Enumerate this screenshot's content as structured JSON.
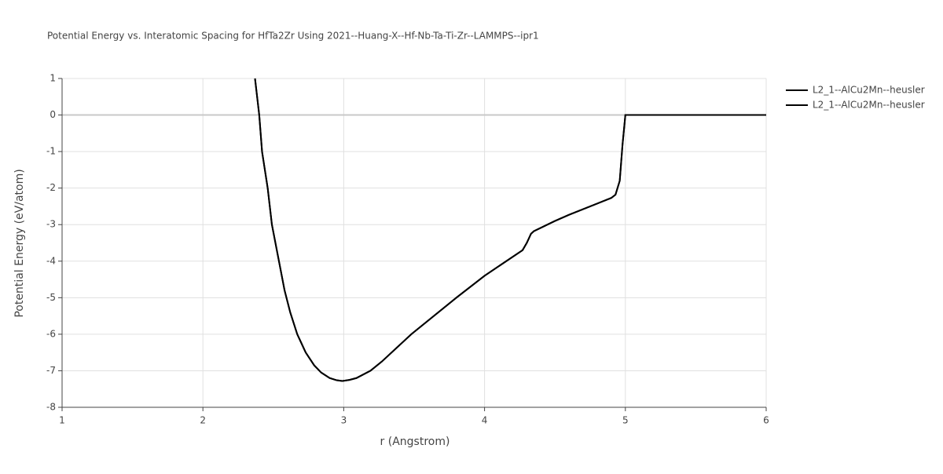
{
  "chart_data": {
    "type": "line",
    "title": "Potential Energy vs. Interatomic Spacing for HfTa2Zr Using 2021--Huang-X--Hf-Nb-Ta-Ti-Zr--LAMMPS--ipr1",
    "x_label": "r (Angstrom)",
    "y_label": "Potential Energy (eV/atom)",
    "x": [
      2.37,
      2.4,
      2.42,
      2.46,
      2.49,
      2.52,
      2.55,
      2.58,
      2.62,
      2.67,
      2.73,
      2.79,
      2.84,
      2.9,
      2.95,
      2.99,
      3.04,
      3.09,
      3.19,
      3.27,
      3.48,
      3.8,
      4.0,
      4.27,
      4.3,
      4.33,
      4.35,
      4.5,
      4.6,
      4.9,
      4.93,
      4.96,
      4.98,
      5.0,
      6.0
    ],
    "series": [
      {
        "name": "L2_1--AlCu2Mn--heusler",
        "color": "#000000",
        "values": [
          1,
          0,
          -1,
          -2,
          -3,
          -3.6,
          -4.2,
          -4.8,
          -5.4,
          -6,
          -6.5,
          -6.85,
          -7.05,
          -7.2,
          -7.26,
          -7.28,
          -7.25,
          -7.2,
          -7,
          -6.75,
          -6,
          -5,
          -4.4,
          -3.7,
          -3.5,
          -3.25,
          -3.18,
          -2.9,
          -2.73,
          -2.27,
          -2.18,
          -1.8,
          -0.8,
          0,
          0
        ]
      },
      {
        "name": "L2_1--AlCu2Mn--heusler",
        "color": "#000000",
        "values": [
          1,
          0,
          -1,
          -2,
          -3,
          -3.6,
          -4.2,
          -4.8,
          -5.4,
          -6,
          -6.5,
          -6.85,
          -7.05,
          -7.2,
          -7.26,
          -7.28,
          -7.25,
          -7.2,
          -7,
          -6.75,
          -6,
          -5,
          -4.4,
          -3.7,
          -3.5,
          -3.25,
          -3.18,
          -2.9,
          -2.73,
          -2.27,
          -2.18,
          -1.8,
          -0.8,
          0,
          0
        ]
      }
    ],
    "xlim": [
      1,
      6
    ],
    "ylim": [
      -8,
      1
    ],
    "xticks": [
      1,
      2,
      3,
      4,
      5,
      6
    ],
    "yticks": [
      1,
      0,
      -1,
      -2,
      -3,
      -4,
      -5,
      -6,
      -7,
      -8
    ],
    "grid": true
  }
}
